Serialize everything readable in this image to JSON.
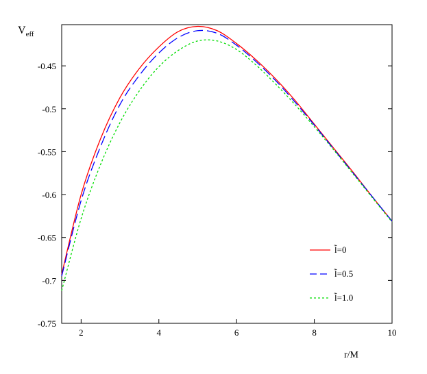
{
  "chart_data": {
    "type": "line",
    "ylabel": "V",
    "ylabel_sub": "eff",
    "xlabel": "r/M",
    "xlim": [
      1.5,
      10
    ],
    "ylim": [
      -0.75,
      -0.402
    ],
    "x_ticks": [
      2,
      4,
      6,
      8,
      10
    ],
    "y_ticks": [
      -0.45,
      -0.5,
      -0.55,
      -0.6,
      -0.65,
      -0.7,
      -0.75
    ],
    "x_tick_labels": [
      "2",
      "4",
      "6",
      "8",
      "10"
    ],
    "y_tick_labels": [
      "-0.45",
      "-0.5",
      "-0.55",
      "-0.6",
      "-0.65",
      "-0.7",
      "-0.75"
    ],
    "grid": false,
    "legend_position": "bottom-right",
    "x": [
      1.5,
      2.0,
      2.5,
      3.0,
      3.5,
      4.0,
      4.5,
      5.0,
      5.5,
      6.0,
      6.5,
      7.0,
      7.5,
      8.0,
      8.5,
      9.0,
      9.5,
      10.0
    ],
    "series": [
      {
        "name": "l̃=0",
        "color": "#ff0000",
        "dash": "solid",
        "values": [
          -0.693,
          -0.6,
          -0.535,
          -0.487,
          -0.453,
          -0.428,
          -0.41,
          -0.404,
          -0.409,
          -0.424,
          -0.443,
          -0.465,
          -0.49,
          -0.518,
          -0.546,
          -0.574,
          -0.603,
          -0.631
        ]
      },
      {
        "name": "l̃=0.5",
        "color": "#0000ff",
        "dash": "dashed",
        "values": [
          -0.695,
          -0.607,
          -0.544,
          -0.495,
          -0.461,
          -0.435,
          -0.417,
          -0.409,
          -0.412,
          -0.426,
          -0.445,
          -0.467,
          -0.492,
          -0.519,
          -0.547,
          -0.575,
          -0.603,
          -0.631
        ]
      },
      {
        "name": "l̃=1.0",
        "color": "#00dd00",
        "dash": "dotted",
        "values": [
          -0.712,
          -0.628,
          -0.565,
          -0.516,
          -0.479,
          -0.451,
          -0.432,
          -0.421,
          -0.421,
          -0.431,
          -0.449,
          -0.471,
          -0.495,
          -0.521,
          -0.548,
          -0.576,
          -0.604,
          -0.632
        ]
      }
    ]
  }
}
